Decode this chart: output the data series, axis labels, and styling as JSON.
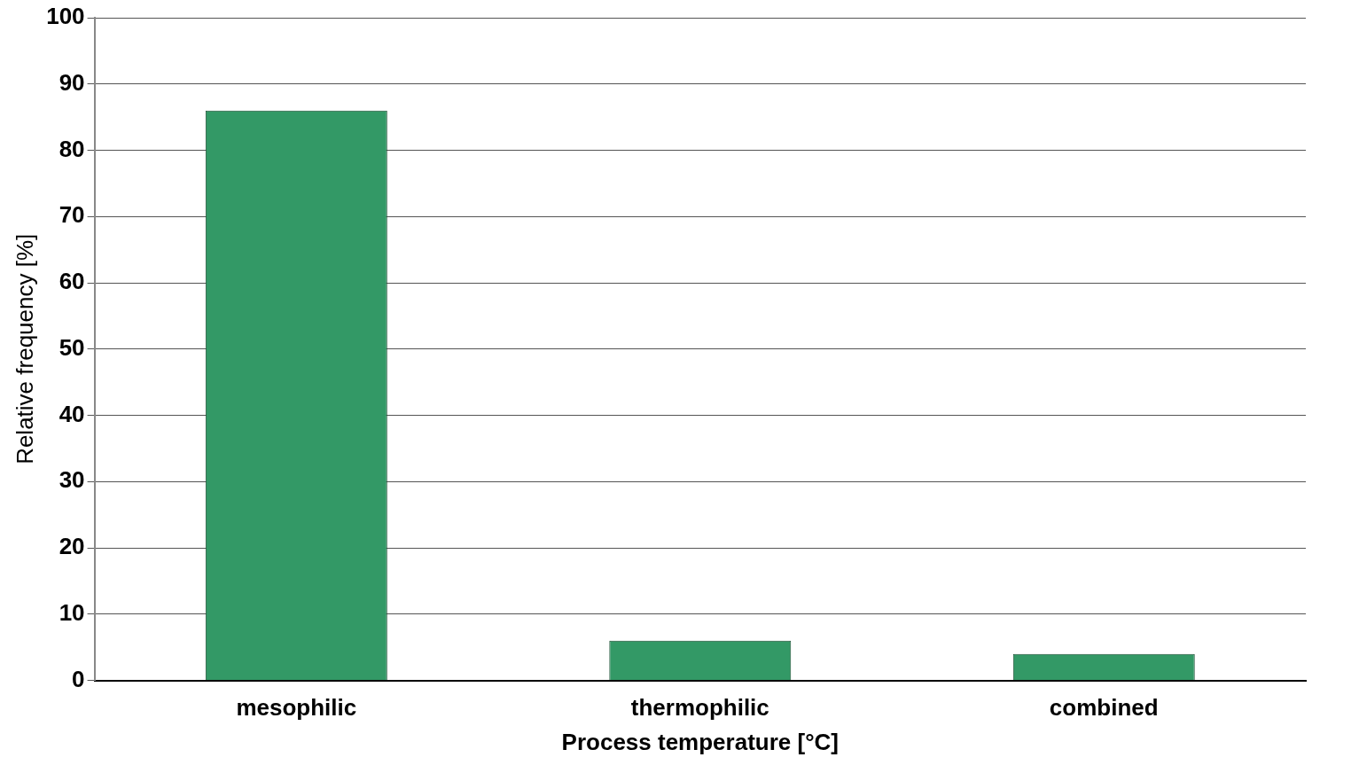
{
  "chart_data": {
    "type": "bar",
    "xlabel": "Process temperature [°C]",
    "ylabel": "Relative frequency [%]",
    "categories": [
      "mesophilic",
      "thermophilic",
      "combined"
    ],
    "values": [
      86,
      6,
      4
    ],
    "color": "#339966",
    "ylim": [
      0,
      100
    ],
    "yticks": [
      0,
      10,
      20,
      30,
      40,
      50,
      60,
      70,
      80,
      90,
      100
    ],
    "grid": "y",
    "legend": false
  }
}
